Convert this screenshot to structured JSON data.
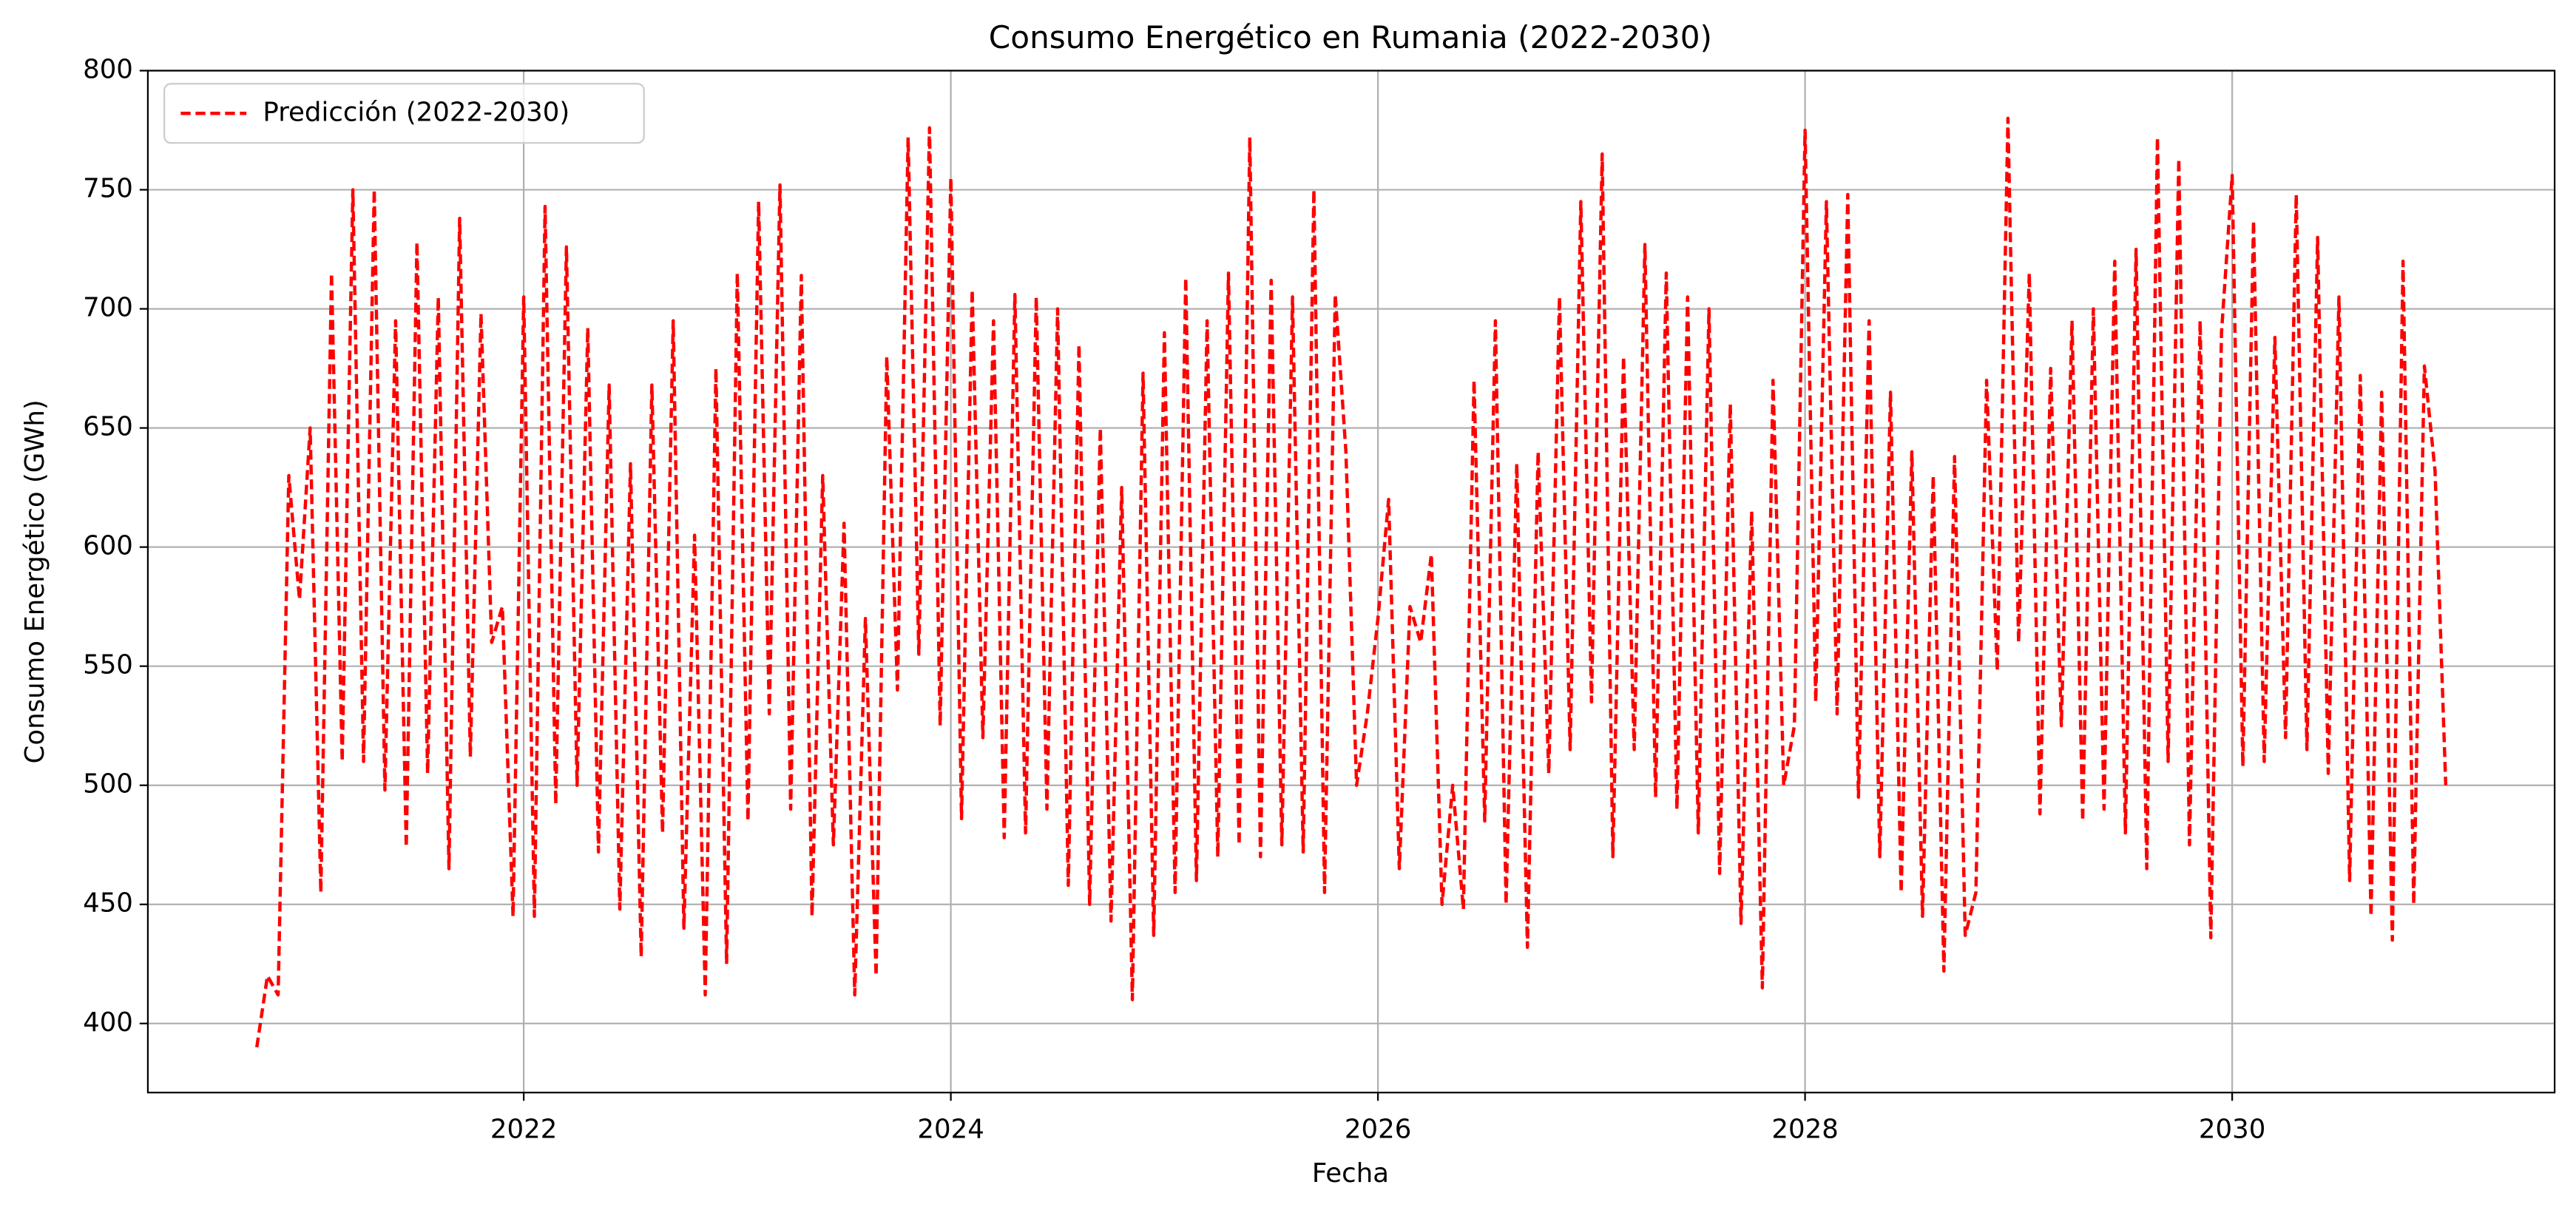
{
  "chart_data": {
    "type": "line",
    "title": "Consumo Energético en Rumania (2022-2030)",
    "x_label": "Fecha",
    "y_label": "Consumo Energético (GWh)",
    "xlim": [
      2020.24,
      2031.51
    ],
    "ylim": [
      371,
      800
    ],
    "xticks": [
      2022,
      2024,
      2026,
      2028,
      2030
    ],
    "yticks": [
      400,
      450,
      500,
      550,
      600,
      650,
      700,
      750,
      800
    ],
    "grid": true,
    "legend": "upper left",
    "x": [
      2020.75,
      2020.8,
      2020.85,
      2020.9,
      2020.95,
      2021,
      2021.05,
      2021.1,
      2021.15,
      2021.2,
      2021.25,
      2021.3,
      2021.35,
      2021.4,
      2021.45,
      2021.5,
      2021.55,
      2021.6,
      2021.65,
      2021.7,
      2021.75,
      2021.8,
      2021.85,
      2021.9,
      2021.95,
      2022,
      2022.05,
      2022.1,
      2022.15,
      2022.2,
      2022.25,
      2022.3,
      2022.35,
      2022.4,
      2022.45,
      2022.5,
      2022.55,
      2022.6,
      2022.65,
      2022.7,
      2022.75,
      2022.8,
      2022.85,
      2022.9,
      2022.95,
      2023,
      2023.05,
      2023.1,
      2023.15,
      2023.2,
      2023.25,
      2023.3,
      2023.35,
      2023.4,
      2023.45,
      2023.5,
      2023.55,
      2023.6,
      2023.65,
      2023.7,
      2023.75,
      2023.8,
      2023.85,
      2023.9,
      2023.95,
      2024,
      2024.05,
      2024.1,
      2024.15,
      2024.2,
      2024.25,
      2024.3,
      2024.35,
      2024.4,
      2024.45,
      2024.5,
      2024.55,
      2024.6,
      2024.65,
      2024.7,
      2024.75,
      2024.8,
      2024.85,
      2024.9,
      2024.95,
      2025,
      2025.05,
      2025.1,
      2025.15,
      2025.2,
      2025.25,
      2025.3,
      2025.35,
      2025.4,
      2025.45,
      2025.5,
      2025.55,
      2025.6,
      2025.65,
      2025.7,
      2025.75,
      2025.8,
      2025.85,
      2025.9,
      2025.95,
      2026,
      2026.05,
      2026.1,
      2026.15,
      2026.2,
      2026.25,
      2026.3,
      2026.35,
      2026.4,
      2026.45,
      2026.5,
      2026.55,
      2026.6,
      2026.65,
      2026.7,
      2026.75,
      2026.8,
      2026.85,
      2026.9,
      2026.95,
      2027,
      2027.05,
      2027.1,
      2027.15,
      2027.2,
      2027.25,
      2027.3,
      2027.35,
      2027.4,
      2027.45,
      2027.5,
      2027.55,
      2027.6,
      2027.65,
      2027.7,
      2027.75,
      2027.8,
      2027.85,
      2027.9,
      2027.95,
      2028,
      2028.05,
      2028.1,
      2028.15,
      2028.2,
      2028.25,
      2028.3,
      2028.35,
      2028.4,
      2028.45,
      2028.5,
      2028.55,
      2028.6,
      2028.65,
      2028.7,
      2028.75,
      2028.8,
      2028.85,
      2028.9,
      2028.95,
      2029,
      2029.05,
      2029.1,
      2029.15,
      2029.2,
      2029.25,
      2029.3,
      2029.35,
      2029.4,
      2029.45,
      2029.5,
      2029.55,
      2029.6,
      2029.65,
      2029.7,
      2029.75,
      2029.8,
      2029.85,
      2029.9,
      2029.95,
      2030,
      2030.05,
      2030.1,
      2030.15,
      2030.2,
      2030.25,
      2030.3,
      2030.35,
      2030.4,
      2030.45,
      2030.5,
      2030.55,
      2030.6,
      2030.65,
      2030.7,
      2030.75,
      2030.8,
      2030.85,
      2030.9,
      2030.95,
      2031
    ],
    "series": [
      {
        "name": "Predicción (2022-2030)",
        "color": "#ff0000",
        "values": [
          390,
          420,
          412,
          630,
          578,
          650,
          455,
          715,
          510,
          750,
          510,
          750,
          498,
          695,
          474,
          728,
          505,
          705,
          465,
          738,
          512,
          698,
          560,
          575,
          445,
          705,
          445,
          743,
          492,
          726,
          500,
          692,
          472,
          668,
          448,
          635,
          428,
          668,
          480,
          695,
          440,
          605,
          412,
          675,
          425,
          715,
          485,
          745,
          530,
          752,
          490,
          714,
          445,
          630,
          475,
          610,
          412,
          570,
          420,
          680,
          540,
          772,
          555,
          776,
          525,
          755,
          486,
          708,
          520,
          695,
          478,
          706,
          480,
          705,
          490,
          700,
          458,
          685,
          450,
          650,
          443,
          625,
          410,
          673,
          437,
          690,
          455,
          713,
          460,
          695,
          470,
          715,
          475,
          772,
          470,
          712,
          475,
          705,
          472,
          750,
          455,
          706,
          640,
          500,
          530,
          570,
          620,
          465,
          575,
          560,
          597,
          450,
          500,
          448,
          670,
          485,
          695,
          450,
          635,
          432,
          640,
          505,
          705,
          515,
          745,
          535,
          765,
          470,
          680,
          515,
          727,
          495,
          715,
          490,
          705,
          480,
          700,
          463,
          660,
          442,
          615,
          415,
          670,
          500,
          525,
          775,
          535,
          745,
          530,
          748,
          495,
          695,
          470,
          665,
          455,
          640,
          445,
          630,
          422,
          638,
          437,
          455,
          670,
          548,
          780,
          560,
          715,
          488,
          675,
          525,
          695,
          485,
          700,
          490,
          720,
          480,
          725,
          465,
          772,
          510,
          763,
          475,
          695,
          436,
          690,
          756,
          508,
          737,
          510,
          688,
          520,
          748,
          515,
          730,
          505,
          705,
          460,
          672,
          445,
          665,
          435,
          720,
          450,
          676,
          632,
          500
        ]
      }
    ]
  }
}
